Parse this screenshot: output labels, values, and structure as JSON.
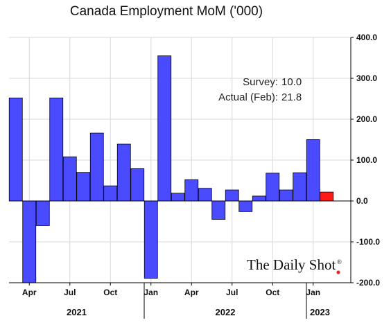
{
  "chart_data": {
    "type": "bar",
    "title": "Canada Employment MoM ('000)",
    "xlabel": "",
    "ylabel": "",
    "ylim": [
      -200,
      400
    ],
    "y_ticks": [
      "400.0",
      "300.0",
      "200.0",
      "100.0",
      "0.0",
      "-100.0",
      "-200.0"
    ],
    "y_axis_position": "right",
    "grid": true,
    "categories": [
      "Mar 2021",
      "Apr 2021",
      "May 2021",
      "Jun 2021",
      "Jul 2021",
      "Aug 2021",
      "Sep 2021",
      "Oct 2021",
      "Nov 2021",
      "Dec 2021",
      "Jan 2022",
      "Feb 2022",
      "Mar 2022",
      "Apr 2022",
      "May 2022",
      "Jun 2022",
      "Jul 2022",
      "Aug 2022",
      "Sep 2022",
      "Oct 2022",
      "Nov 2022",
      "Dec 2022",
      "Jan 2023",
      "Feb 2023"
    ],
    "values": [
      252,
      -200,
      -60,
      252,
      108,
      70,
      166,
      37,
      139,
      79,
      -189,
      355,
      19,
      52,
      31,
      -45,
      27,
      -26,
      12,
      68,
      27,
      69,
      150,
      21.8
    ],
    "bar_colors": [
      "#4a4aff",
      "#4a4aff",
      "#4a4aff",
      "#4a4aff",
      "#4a4aff",
      "#4a4aff",
      "#4a4aff",
      "#4a4aff",
      "#4a4aff",
      "#4a4aff",
      "#4a4aff",
      "#4a4aff",
      "#4a4aff",
      "#4a4aff",
      "#4a4aff",
      "#4a4aff",
      "#4a4aff",
      "#4a4aff",
      "#4a4aff",
      "#4a4aff",
      "#4a4aff",
      "#4a4aff",
      "#4a4aff",
      "#ff1a1a"
    ],
    "x_tick_labels": [
      {
        "label": "Apr",
        "index": 1
      },
      {
        "label": "Jul",
        "index": 4
      },
      {
        "label": "Oct",
        "index": 7
      },
      {
        "label": "Jan",
        "index": 10
      },
      {
        "label": "Apr",
        "index": 13
      },
      {
        "label": "Jul",
        "index": 16
      },
      {
        "label": "Oct",
        "index": 19
      },
      {
        "label": "Jan",
        "index": 22
      }
    ],
    "year_labels": [
      {
        "label": "2021",
        "from_index": 0,
        "to_index": 9
      },
      {
        "label": "2022",
        "from_index": 10,
        "to_index": 21
      },
      {
        "label": "2023",
        "from_index": 22,
        "to_index": 23
      }
    ],
    "annotations": [
      {
        "label": "Survey:",
        "value": "10.0"
      },
      {
        "label": "Actual (Feb):",
        "value": "21.8"
      }
    ]
  },
  "brand": {
    "name": "The Daily Shot",
    "mark": "®",
    "dot_color": "#e8252a"
  },
  "colors": {
    "bar": "#4a4aff",
    "highlight": "#ff1a1a",
    "grid": "#d9d9d9",
    "axis": "#000000"
  }
}
